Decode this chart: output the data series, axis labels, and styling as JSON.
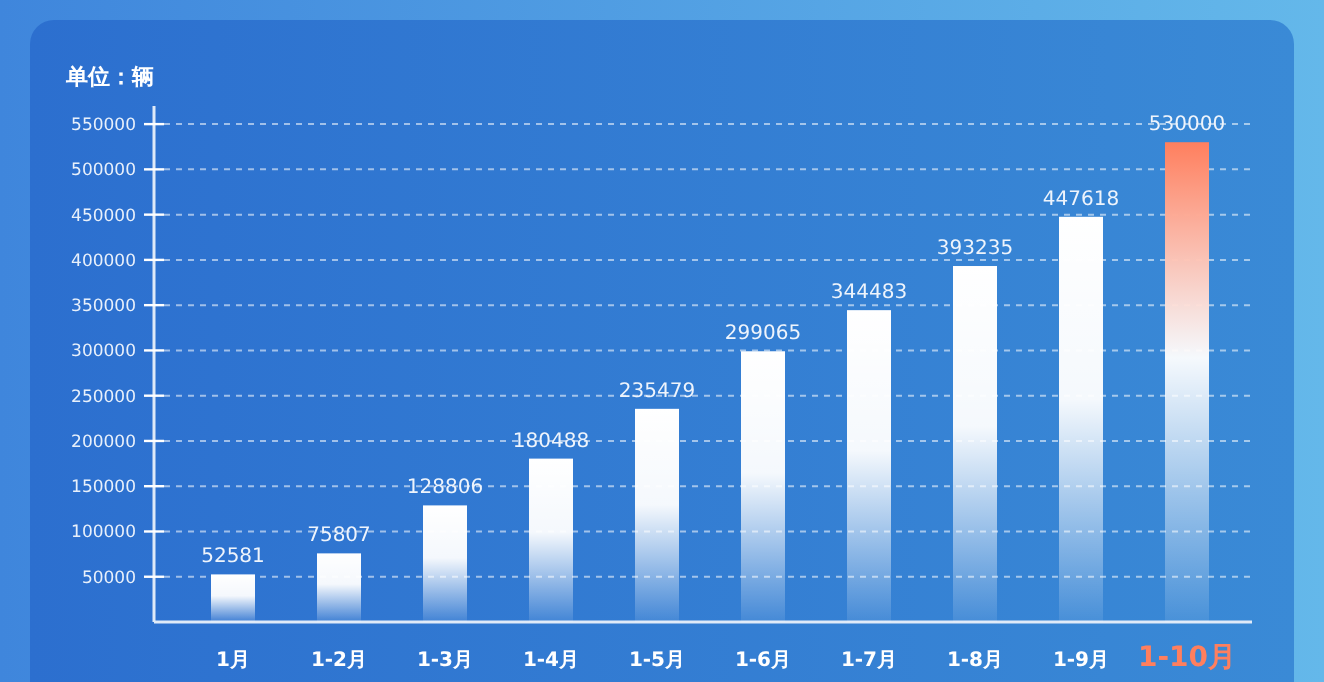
{
  "chart_data": {
    "type": "bar",
    "ylabel": "单位：辆",
    "categories": [
      "1月",
      "1-2月",
      "1-3月",
      "1-4月",
      "1-5月",
      "1-6月",
      "1-7月",
      "1-8月",
      "1-9月",
      "1-10月"
    ],
    "values": [
      52581,
      75807,
      128806,
      180488,
      235479,
      299065,
      344483,
      393235,
      447618,
      530000
    ],
    "colors": [
      "#ffffff",
      "#ffffff",
      "#ffffff",
      "#ffffff",
      "#ffffff",
      "#ffffff",
      "#ffffff",
      "#ffffff",
      "#ffffff",
      "#ff7f5e"
    ],
    "ylim": [
      0,
      570000
    ],
    "yticks": [
      50000,
      100000,
      150000,
      200000,
      250000,
      300000,
      350000,
      400000,
      450000,
      500000,
      550000
    ],
    "grid": "y",
    "data_labels": true
  }
}
